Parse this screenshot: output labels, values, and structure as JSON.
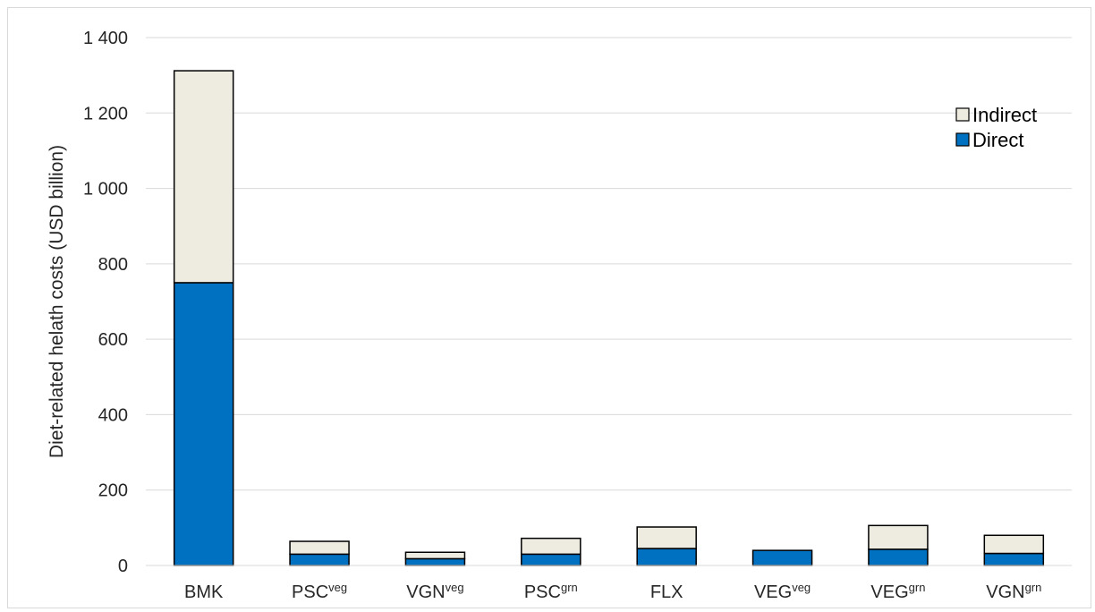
{
  "chart_data": {
    "type": "bar",
    "stacked": true,
    "title": "",
    "xlabel": "",
    "ylabel": "Diet-related helath costs (USD billion)",
    "ylim": [
      0,
      1400
    ],
    "yticks": [
      0,
      200,
      400,
      600,
      800,
      1000,
      1200,
      1400
    ],
    "ytick_labels": [
      "0",
      "200",
      "400",
      "600",
      "800",
      "1 000",
      "1 200",
      "1 400"
    ],
    "grid": true,
    "legend_position": "top-right",
    "categories": [
      {
        "base": "BMK",
        "sup": ""
      },
      {
        "base": "PSC",
        "sup": "veg"
      },
      {
        "base": "VGN",
        "sup": "veg"
      },
      {
        "base": "PSC",
        "sup": "grn"
      },
      {
        "base": "FLX",
        "sup": ""
      },
      {
        "base": "VEG",
        "sup": "veg"
      },
      {
        "base": "VEG",
        "sup": "grn"
      },
      {
        "base": "VGN",
        "sup": "grn"
      }
    ],
    "series": [
      {
        "name": "Direct",
        "color": "#0070c0",
        "values": [
          750,
          30,
          18,
          30,
          45,
          40,
          43,
          32
        ]
      },
      {
        "name": "Indirect",
        "color": "#eeece1",
        "values": [
          562,
          34,
          17,
          42,
          57,
          0,
          63,
          48
        ]
      }
    ],
    "legend": [
      "Indirect",
      "Direct"
    ]
  }
}
